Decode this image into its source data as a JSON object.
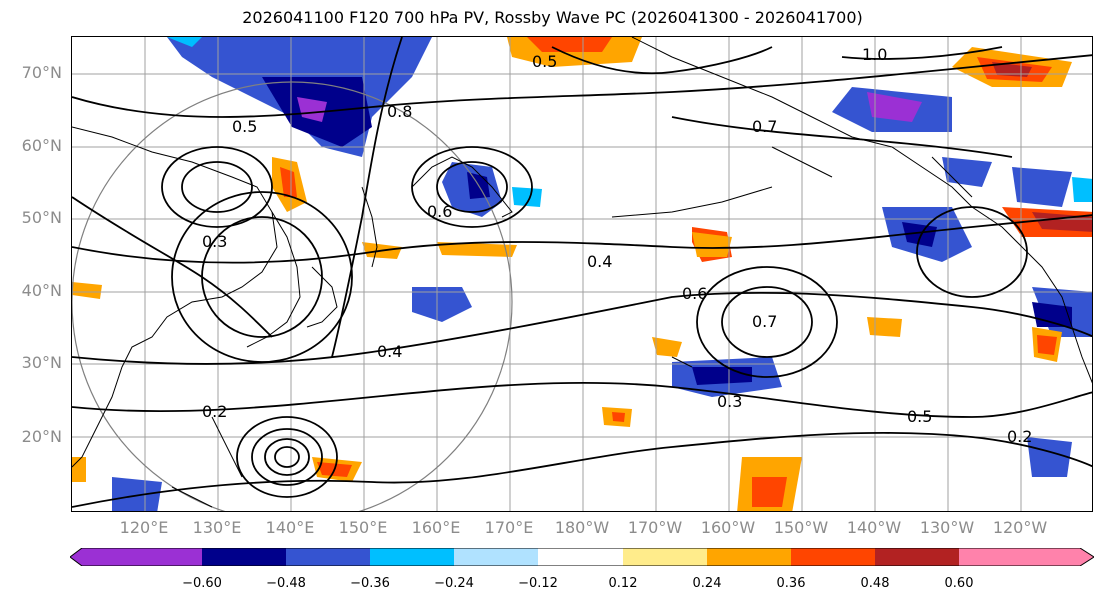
{
  "title": "2026041100 F120 700 hPa PV, Rossby Wave PC (2026041300 - 2026041700)",
  "lat_labels": [
    "70°N",
    "60°N",
    "50°N",
    "40°N",
    "30°N",
    "20°N"
  ],
  "lon_labels": [
    "120°E",
    "130°E",
    "140°E",
    "150°E",
    "160°E",
    "170°E",
    "180°W",
    "170°W",
    "160°W",
    "150°W",
    "140°W",
    "130°W",
    "120°W"
  ],
  "contour_labels": [
    "1.0",
    "0.5",
    "0.8",
    "0.7",
    "0.6",
    "0.5",
    "0.4",
    "0.3",
    "0.2",
    "0.6",
    "0.4",
    "0.7",
    "0.3",
    "0.5",
    "0.2"
  ],
  "colorbar": {
    "ticks": [
      "−0.60",
      "−0.48",
      "−0.36",
      "−0.24",
      "−0.12",
      "0.12",
      "0.24",
      "0.36",
      "0.48",
      "0.60"
    ],
    "colors": [
      "#9b30d4",
      "#00008b",
      "#3554d1",
      "#00bfff",
      "#b0e2ff",
      "#ffffff",
      "#ffec8b",
      "#ffa500",
      "#ff4500",
      "#b22222",
      "#ff82ab"
    ]
  },
  "map_colors": {
    "ocean": "#ffffff",
    "coast": "#000000",
    "grid": "#a0a0a0",
    "circle": "#808080"
  }
}
